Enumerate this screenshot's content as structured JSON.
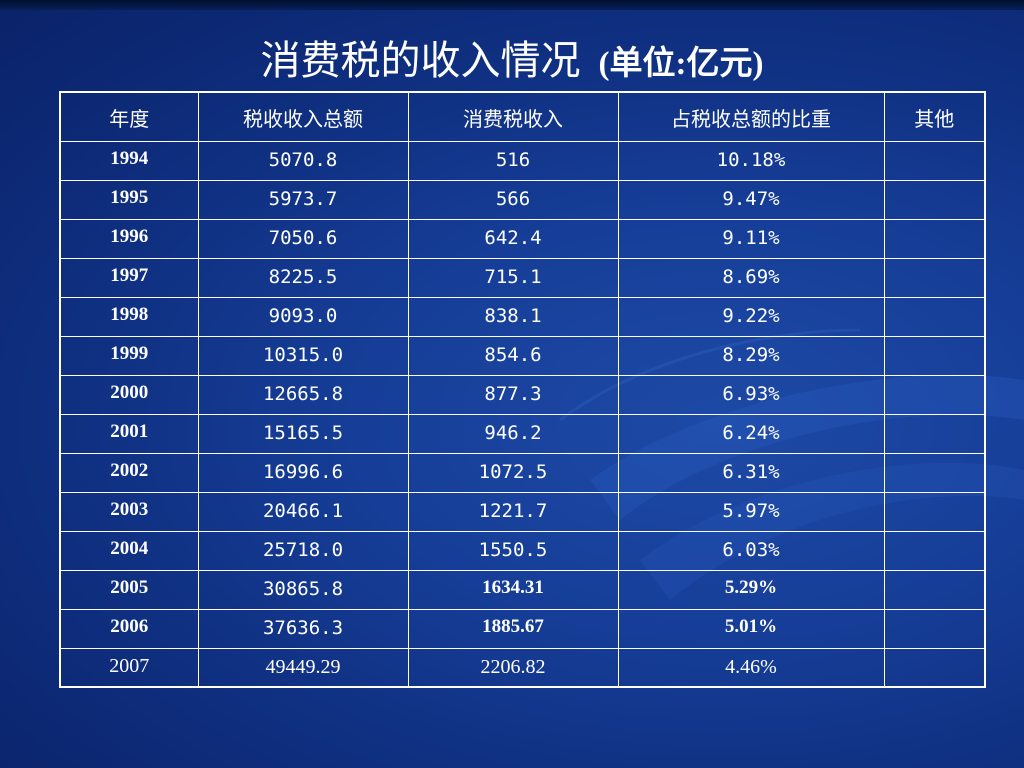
{
  "slide": {
    "title_main": "消费税的收入情况",
    "title_unit": "(单位:亿元)"
  },
  "table": {
    "headers": [
      "年度",
      "税收收入总额",
      "消费税收入",
      "占税收总额的比重",
      "其他"
    ],
    "rows": [
      [
        "1994",
        "5070.8",
        "516",
        "10.18%",
        ""
      ],
      [
        "1995",
        "5973.7",
        "566",
        "9.47%",
        ""
      ],
      [
        "1996",
        "7050.6",
        "642.4",
        "9.11%",
        ""
      ],
      [
        "1997",
        "8225.5",
        "715.1",
        "8.69%",
        ""
      ],
      [
        "1998",
        "9093.0",
        "838.1",
        "9.22%",
        ""
      ],
      [
        "1999",
        "10315.0",
        "854.6",
        "8.29%",
        ""
      ],
      [
        "2000",
        "12665.8",
        "877.3",
        "6.93%",
        ""
      ],
      [
        "2001",
        "15165.5",
        "946.2",
        "6.24%",
        ""
      ],
      [
        "2002",
        "16996.6",
        "1072.5",
        "6.31%",
        ""
      ],
      [
        "2003",
        "20466.1",
        "1221.7",
        "5.97%",
        ""
      ],
      [
        "2004",
        "25718.0",
        "1550.5",
        "6.03%",
        ""
      ],
      [
        "2005",
        "30865.8",
        "1634.31",
        "5.29%",
        ""
      ],
      [
        "2006",
        "37636.3",
        "1885.67",
        "5.01%",
        ""
      ],
      [
        "2007",
        "49449.29",
        "2206.82",
        "4.46%",
        ""
      ]
    ]
  }
}
